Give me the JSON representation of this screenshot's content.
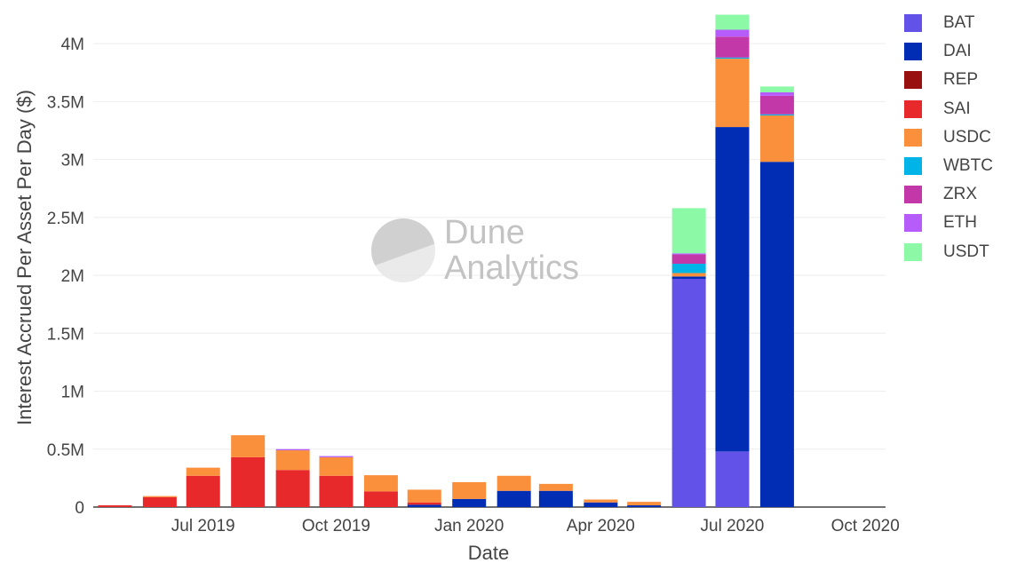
{
  "watermark": {
    "line1": "Dune",
    "line2": "Analytics"
  },
  "colors": {
    "BAT": "#6352e8",
    "DAI": "#002db3",
    "REP": "#991010",
    "SAI": "#e8292b",
    "USDC": "#fa8f3c",
    "WBTC": "#00b4e8",
    "ZRX": "#c238a8",
    "ETH": "#b55cfa",
    "USDT": "#8cf9a7"
  },
  "chart_data": {
    "type": "bar",
    "stacked": true,
    "xlabel": "Date",
    "ylabel": "Interest Accrued Per Asset Per Day ($)",
    "ylim": [
      0,
      4300000
    ],
    "yticks": [
      0,
      500000,
      1000000,
      1500000,
      2000000,
      2500000,
      3000000,
      3500000,
      4000000
    ],
    "ytick_labels": [
      "0",
      "0.5M",
      "1M",
      "1.5M",
      "2M",
      "2.5M",
      "3M",
      "3.5M",
      "4M"
    ],
    "xticks": [
      "2019-07-01",
      "2019-10-01",
      "2020-01-01",
      "2020-04-01",
      "2020-07-01",
      "2020-10-01"
    ],
    "xtick_labels": [
      "Jul 2019",
      "Oct 2019",
      "Jan 2020",
      "Apr 2020",
      "Jul 2020",
      "Oct 2020"
    ],
    "xlim": [
      "2019-04-16",
      "2020-10-15"
    ],
    "grid": true,
    "legend_position": "right",
    "categories": [
      "2019-05-01",
      "2019-06-01",
      "2019-07-01",
      "2019-08-01",
      "2019-09-01",
      "2019-10-01",
      "2019-11-01",
      "2019-12-01",
      "2020-01-01",
      "2020-02-01",
      "2020-03-01",
      "2020-04-01",
      "2020-05-01",
      "2020-06-01",
      "2020-07-01",
      "2020-08-01"
    ],
    "series": [
      {
        "name": "BAT",
        "values": [
          0,
          0,
          0,
          0,
          0,
          0,
          0,
          0,
          0,
          0,
          0,
          0,
          0,
          1970000,
          480000,
          0
        ]
      },
      {
        "name": "DAI",
        "values": [
          0,
          0,
          0,
          0,
          0,
          0,
          0,
          20000,
          70000,
          140000,
          140000,
          40000,
          15000,
          20000,
          2800000,
          2980000
        ]
      },
      {
        "name": "REP",
        "values": [
          0,
          0,
          0,
          0,
          0,
          0,
          0,
          0,
          0,
          0,
          0,
          0,
          0,
          0,
          0,
          0
        ]
      },
      {
        "name": "SAI",
        "values": [
          15000,
          85000,
          270000,
          430000,
          320000,
          270000,
          135000,
          20000,
          0,
          0,
          0,
          0,
          0,
          0,
          0,
          0
        ]
      },
      {
        "name": "USDC",
        "values": [
          0,
          10000,
          70000,
          190000,
          170000,
          160000,
          140000,
          110000,
          145000,
          130000,
          60000,
          25000,
          30000,
          30000,
          590000,
          400000
        ]
      },
      {
        "name": "WBTC",
        "values": [
          0,
          0,
          0,
          0,
          0,
          0,
          0,
          0,
          0,
          0,
          0,
          0,
          0,
          80000,
          10000,
          10000
        ]
      },
      {
        "name": "ZRX",
        "values": [
          0,
          0,
          0,
          0,
          0,
          0,
          0,
          0,
          0,
          0,
          0,
          0,
          0,
          80000,
          180000,
          160000
        ]
      },
      {
        "name": "ETH",
        "values": [
          0,
          0,
          0,
          0,
          10000,
          10000,
          0,
          0,
          0,
          0,
          0,
          0,
          0,
          10000,
          60000,
          30000
        ]
      },
      {
        "name": "USDT",
        "values": [
          0,
          0,
          0,
          0,
          0,
          0,
          0,
          0,
          0,
          0,
          0,
          0,
          0,
          390000,
          130000,
          50000
        ]
      }
    ]
  }
}
